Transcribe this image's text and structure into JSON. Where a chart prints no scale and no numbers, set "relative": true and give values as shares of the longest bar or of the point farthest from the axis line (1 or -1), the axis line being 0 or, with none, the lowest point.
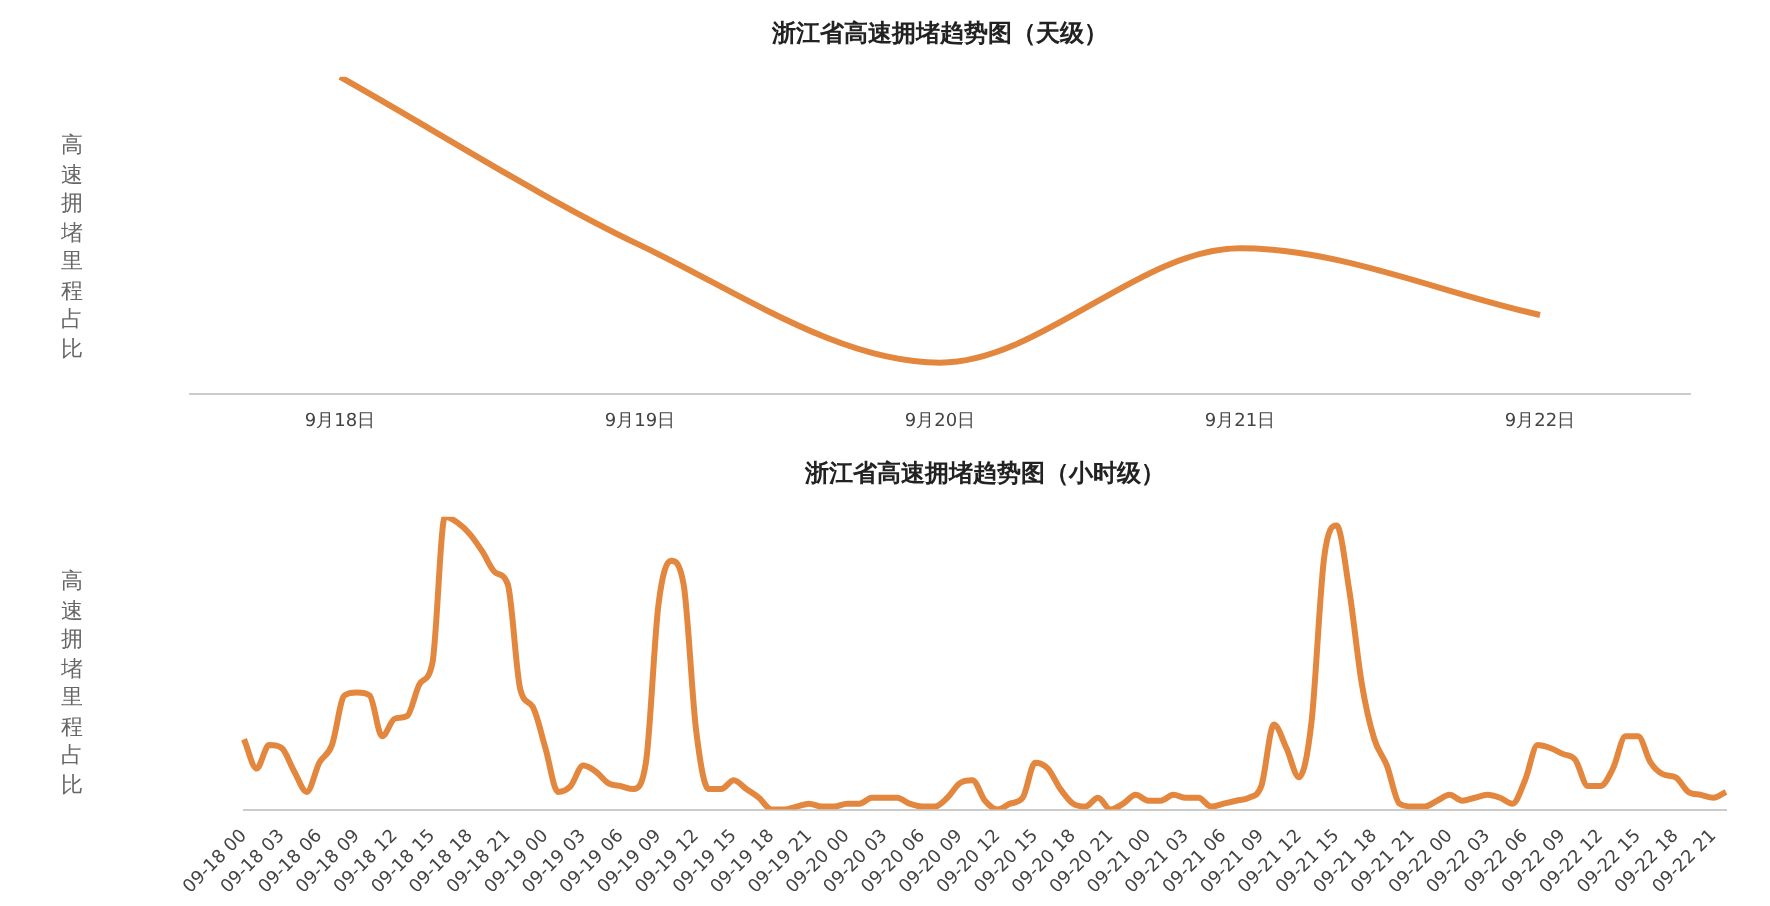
{
  "chart_data": [
    {
      "type": "line",
      "title": "浙江省高速拥堵趋势图（天级）",
      "ylabel": "高速拥堵里程占比",
      "relative": true,
      "marker": "none",
      "categories": [
        "9月18日",
        "9月19日",
        "9月20日",
        "9月21日",
        "9月22日"
      ],
      "series": [
        {
          "color": "#e3873e",
          "values": [
            1,
            0.47,
            0.1,
            0.46,
            0.25
          ]
        }
      ]
    },
    {
      "type": "line",
      "title": "浙江省高速拥堵趋势图（小时级）",
      "ylabel": "高速拥堵里程占比",
      "relative": true,
      "marker": "none",
      "categories": [
        "09-18 00",
        null,
        null,
        "09-18 03",
        null,
        null,
        "09-18 06",
        null,
        null,
        "09-18 09",
        null,
        null,
        "09-18 12",
        null,
        null,
        "09-18 15",
        null,
        null,
        "09-18 18",
        null,
        null,
        "09-18 21",
        null,
        null,
        "09-19 00",
        null,
        null,
        "09-19 03",
        null,
        null,
        "09-19 06",
        null,
        null,
        "09-19 09",
        null,
        null,
        "09-19 12",
        null,
        null,
        "09-19 15",
        null,
        null,
        "09-19 18",
        null,
        null,
        "09-19 21",
        null,
        null,
        "09-20 00",
        null,
        null,
        "09-20 03",
        null,
        null,
        "09-20 06",
        null,
        null,
        "09-20 09",
        null,
        null,
        "09-20 12",
        null,
        null,
        "09-20 15",
        null,
        null,
        "09-20 18",
        null,
        null,
        "09-20 21",
        null,
        null,
        "09-21 00",
        null,
        null,
        "09-21 03",
        null,
        null,
        "09-21 06",
        null,
        null,
        "09-21 09",
        null,
        null,
        "09-21 12",
        null,
        null,
        "09-21 15",
        null,
        null,
        "09-21 18",
        null,
        null,
        "09-21 21",
        null,
        null,
        "09-22 00",
        null,
        null,
        "09-22 03",
        null,
        null,
        "09-22 06",
        null,
        null,
        "09-22 09",
        null,
        null,
        "09-22 12",
        null,
        null,
        "09-22 15",
        null,
        null,
        "09-22 18",
        null,
        null,
        "09-22 21",
        null
      ],
      "series": [
        {
          "color": "#e3873e",
          "values": [
            0.24,
            0.14,
            0.22,
            0.21,
            0.13,
            0.06,
            0.16,
            0.22,
            0.39,
            0.4,
            0.39,
            0.25,
            0.31,
            0.32,
            0.43,
            0.5,
            1,
            0.98,
            0.94,
            0.88,
            0.81,
            0.77,
            0.41,
            0.35,
            0.21,
            0.06,
            0.08,
            0.15,
            0.13,
            0.09,
            0.08,
            0.07,
            0.16,
            0.7,
            0.85,
            0.77,
            0.27,
            0.07,
            0.07,
            0.1,
            0.07,
            0.04,
            0,
            0,
            0.01,
            0.02,
            0.01,
            0.01,
            0.02,
            0.02,
            0.04,
            0.04,
            0.04,
            0.02,
            0.01,
            0.01,
            0.04,
            0.09,
            0.1,
            0.03,
            0,
            0.02,
            0.04,
            0.16,
            0.14,
            0.07,
            0.02,
            0.01,
            0.04,
            0,
            0.02,
            0.05,
            0.03,
            0.03,
            0.05,
            0.04,
            0.04,
            0.01,
            0.02,
            0.03,
            0.04,
            0.08,
            0.29,
            0.21,
            0.11,
            0.3,
            0.86,
            0.97,
            0.75,
            0.43,
            0.24,
            0.15,
            0.02,
            0.01,
            0.01,
            0.03,
            0.05,
            0.03,
            0.04,
            0.05,
            0.04,
            0.02,
            0.1,
            0.22,
            0.21,
            0.19,
            0.17,
            0.08,
            0.08,
            0.14,
            0.25,
            0.25,
            0.16,
            0.12,
            0.11,
            0.06,
            0.05,
            0.04,
            0.06
          ]
        }
      ]
    }
  ]
}
